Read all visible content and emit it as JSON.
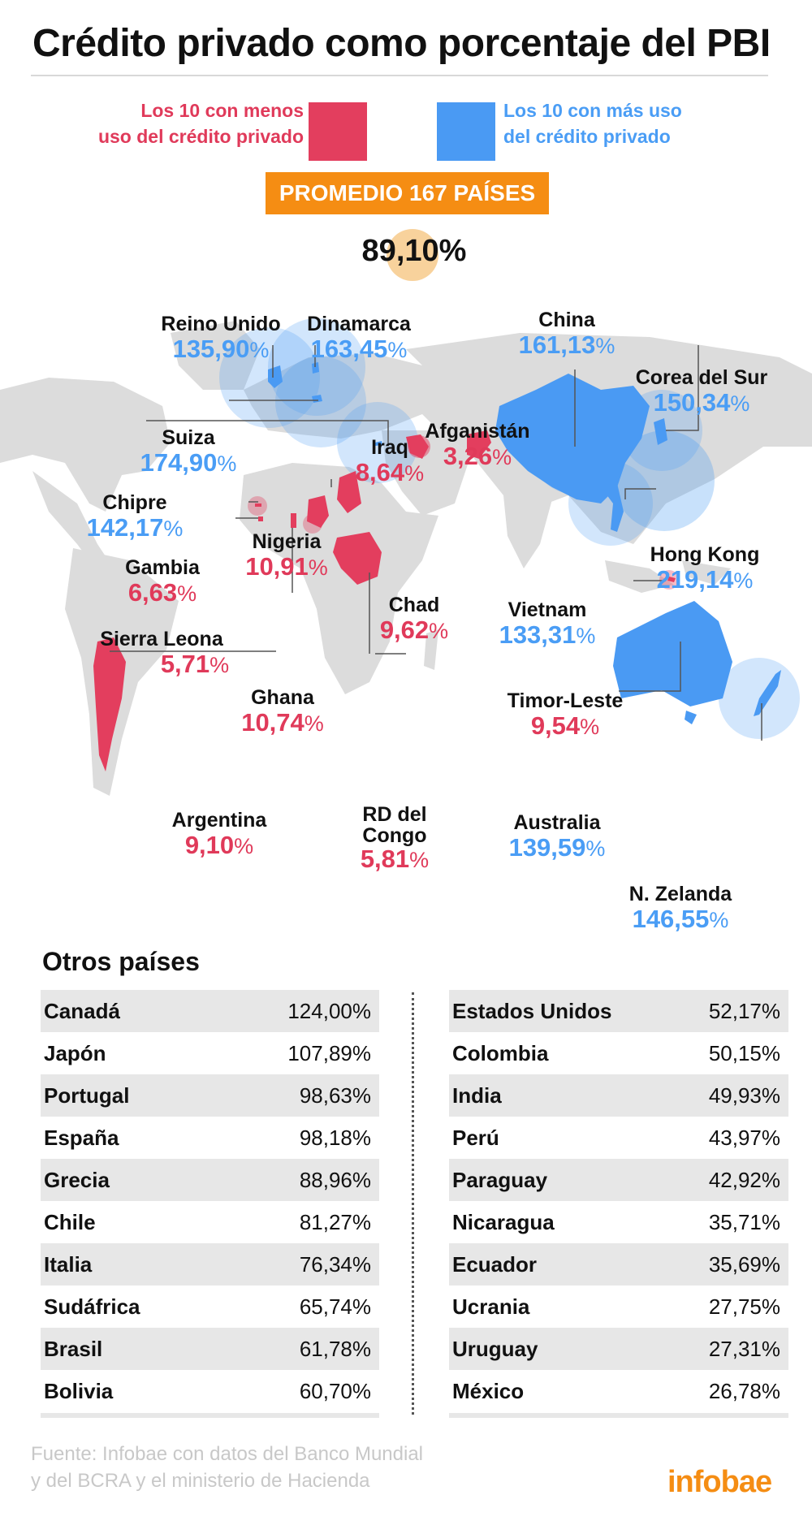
{
  "title": "Crédito privado como porcentaje del PBI",
  "legend": {
    "less_line1": "Los 10 con menos",
    "less_line2": "uso del crédito privado",
    "more_line1": "Los 10 con más uso",
    "more_line2": "del crédito privado",
    "less_color": "#e33e5e",
    "more_color": "#4a9af3"
  },
  "average": {
    "label": "PROMEDIO 167 PAÍSES",
    "value": "89,10%"
  },
  "map_labels": [
    {
      "name": "Reino Unido",
      "value": "135,90",
      "group": "more"
    },
    {
      "name": "Dinamarca",
      "value": "163,45",
      "group": "more"
    },
    {
      "name": "Suiza",
      "value": "174,90",
      "group": "more"
    },
    {
      "name": "Chipre",
      "value": "142,17",
      "group": "more"
    },
    {
      "name": "China",
      "value": "161,13",
      "group": "more"
    },
    {
      "name": "Corea del Sur",
      "value": "150,34",
      "group": "more"
    },
    {
      "name": "Hong Kong",
      "value": "219,14",
      "group": "more"
    },
    {
      "name": "Vietnam",
      "value": "133,31",
      "group": "more"
    },
    {
      "name": "Australia",
      "value": "139,59",
      "group": "more"
    },
    {
      "name": "N. Zelanda",
      "value": "146,55",
      "group": "more"
    },
    {
      "name": "Iraq",
      "value": "8,64",
      "group": "less"
    },
    {
      "name": "Afganistán",
      "value": "3,26",
      "group": "less"
    },
    {
      "name": "Nigeria",
      "value": "10,91",
      "group": "less"
    },
    {
      "name": "Gambia",
      "value": "6,63",
      "group": "less"
    },
    {
      "name": "Chad",
      "value": "9,62",
      "group": "less"
    },
    {
      "name": "Sierra Leona",
      "value": "5,71",
      "group": "less"
    },
    {
      "name": "Ghana",
      "value": "10,74",
      "group": "less"
    },
    {
      "name": "Timor-Leste",
      "value": "9,54",
      "group": "less"
    },
    {
      "name": "Argentina",
      "value": "9,10",
      "group": "less"
    },
    {
      "name": "RD del",
      "name2": "Congo",
      "value": "5,81",
      "group": "less"
    }
  ],
  "pct_sign": "%",
  "others": {
    "title": "Otros países",
    "left": [
      {
        "country": "Canadá",
        "pct": "124,00%"
      },
      {
        "country": "Japón",
        "pct": "107,89%"
      },
      {
        "country": "Portugal",
        "pct": "98,63%"
      },
      {
        "country": "España",
        "pct": "98,18%"
      },
      {
        "country": "Grecia",
        "pct": "88,96%"
      },
      {
        "country": "Chile",
        "pct": "81,27%"
      },
      {
        "country": "Italia",
        "pct": "76,34%"
      },
      {
        "country": "Sudáfrica",
        "pct": "65,74%"
      },
      {
        "country": "Brasil",
        "pct": "61,78%"
      },
      {
        "country": "Bolivia",
        "pct": "60,70%"
      }
    ],
    "right": [
      {
        "country": "Estados Unidos",
        "pct": "52,17%"
      },
      {
        "country": "Colombia",
        "pct": "50,15%"
      },
      {
        "country": "India",
        "pct": "49,93%"
      },
      {
        "country": "Perú",
        "pct": "43,97%"
      },
      {
        "country": "Paraguay",
        "pct": "42,92%"
      },
      {
        "country": "Nicaragua",
        "pct": "35,71%"
      },
      {
        "country": "Ecuador",
        "pct": "35,69%"
      },
      {
        "country": "Ucrania",
        "pct": "27,75%"
      },
      {
        "country": "Uruguay",
        "pct": "27,31%"
      },
      {
        "country": "México",
        "pct": "26,78%"
      }
    ]
  },
  "source_line1": "Fuente: Infobae con datos del Banco Mundial",
  "source_line2": "y del BCRA y el ministerio de Hacienda",
  "brand": "infobae"
}
